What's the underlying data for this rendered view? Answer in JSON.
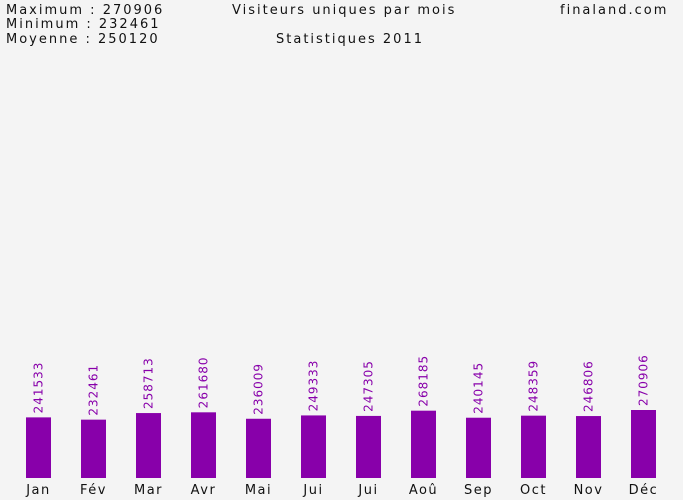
{
  "header": {
    "maximum_line": "Maximum : 270906",
    "minimum_line": "Minimum : 232461",
    "average_line": "Moyenne : 250120",
    "site": "finaland.com",
    "title": "Visiteurs uniques par mois",
    "subtitle": "Statistiques 2011"
  },
  "colors": {
    "bar": "#8800aa",
    "value_label": "#8800aa",
    "text": "#111111",
    "background": "#f4f4f4"
  },
  "chart_data": {
    "type": "bar",
    "title": "Visiteurs uniques par mois",
    "subtitle": "Statistiques 2011",
    "categories": [
      "Jan",
      "Fév",
      "Mar",
      "Avr",
      "Mai",
      "Jui",
      "Jui",
      "Aoû",
      "Sep",
      "Oct",
      "Nov",
      "Déc"
    ],
    "values": [
      241533,
      232461,
      258713,
      261680,
      236009,
      249333,
      247305,
      268185,
      240145,
      248359,
      246806,
      270906
    ],
    "value_labels": [
      "241533",
      "232461",
      "258713",
      "261680",
      "236009",
      "249333",
      "247305",
      "268185",
      "240145",
      "248359",
      "246806",
      "270906"
    ],
    "xlabel": "",
    "ylabel": "",
    "grid": false,
    "legend": "none"
  }
}
